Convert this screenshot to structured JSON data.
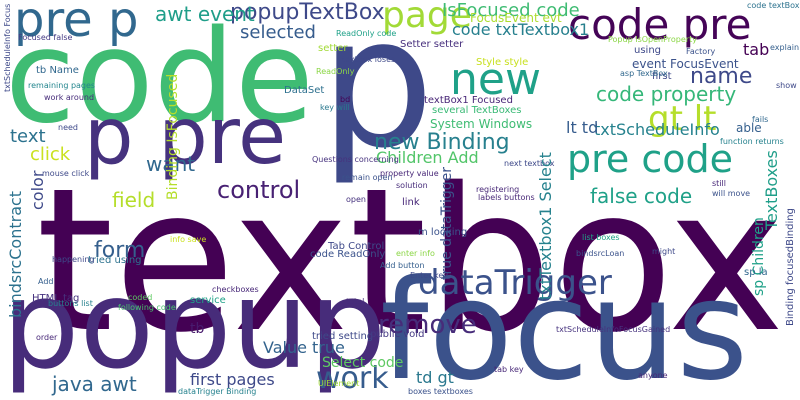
{
  "words": [
    {
      "text": "textbox",
      "color": "#440154",
      "vertical": false
    },
    {
      "text": "focus",
      "color": "#3b528b",
      "vertical": false
    },
    {
      "text": "popup",
      "color": "#472c7a",
      "vertical": false
    },
    {
      "text": "code",
      "color": "#3fbc73",
      "vertical": false
    },
    {
      "text": "p",
      "color": "#3e4989",
      "vertical": false
    },
    {
      "text": "p pre",
      "color": "#46327e",
      "vertical": false
    },
    {
      "text": "pre p",
      "color": "#31688e",
      "vertical": false
    },
    {
      "text": "code pre",
      "color": "#450457",
      "vertical": false
    },
    {
      "text": "page",
      "color": "#a2da37",
      "vertical": false
    },
    {
      "text": "new",
      "color": "#1fa188",
      "vertical": false
    },
    {
      "text": "pre code",
      "color": "#1fa188",
      "vertical": false
    },
    {
      "text": "gt lt",
      "color": "#b5de2b",
      "vertical": false
    },
    {
      "text": "dataTrigger",
      "color": "#3b528b",
      "vertical": false
    },
    {
      "text": "work",
      "color": "#365c8d",
      "vertical": false
    },
    {
      "text": "remove",
      "color": "#472c7a",
      "vertical": false
    },
    {
      "text": "control",
      "color": "#482173",
      "vertical": false
    },
    {
      "text": "name",
      "color": "#3e4989",
      "vertical": false
    },
    {
      "text": "code property",
      "color": "#35b779",
      "vertical": false
    },
    {
      "text": "new Binding",
      "color": "#27808e",
      "vertical": false
    },
    {
      "text": "false code",
      "color": "#1fa188",
      "vertical": false
    },
    {
      "text": "java awt",
      "color": "#31688e",
      "vertical": false
    },
    {
      "text": "popupTextBox",
      "color": "#3e4989",
      "vertical": false
    },
    {
      "text": "awt event",
      "color": "#1f9e89",
      "vertical": false
    },
    {
      "text": "IsFocused code",
      "color": "#3fbc73",
      "vertical": false
    },
    {
      "text": "code txtTextbox1",
      "color": "#27808e",
      "vertical": false
    },
    {
      "text": "selected",
      "color": "#365c8d",
      "vertical": false
    },
    {
      "text": "want",
      "color": "#31688e",
      "vertical": false
    },
    {
      "text": "form",
      "color": "#355f8d",
      "vertical": false
    },
    {
      "text": "field",
      "color": "#b5de2b",
      "vertical": false
    },
    {
      "text": "click",
      "color": "#cae11f",
      "vertical": false
    },
    {
      "text": "text",
      "color": "#2c728e",
      "vertical": false
    },
    {
      "text": "Children Add",
      "color": "#52c569",
      "vertical": false
    },
    {
      "text": "txtScheduleInfo",
      "color": "#26828e",
      "vertical": false
    },
    {
      "text": "lt td",
      "color": "#365c8d",
      "vertical": false
    },
    {
      "text": "first pages",
      "color": "#3e4989",
      "vertical": false
    },
    {
      "text": "Value true",
      "color": "#33638d",
      "vertical": false
    },
    {
      "text": "Select code",
      "color": "#5ec962",
      "vertical": false
    },
    {
      "text": "td gt",
      "color": "#2a788e",
      "vertical": false
    },
    {
      "text": "tab",
      "color": "#440154",
      "vertical": false
    },
    {
      "text": "able",
      "color": "#355f8d",
      "vertical": false
    },
    {
      "text": "FocusEvent evt",
      "color": "#addc30",
      "vertical": false
    },
    {
      "text": "event FocusEvent",
      "color": "#3b528b",
      "vertical": false
    },
    {
      "text": "System Windows",
      "color": "#3fbc73",
      "vertical": false
    },
    {
      "text": "Style style",
      "color": "#c8e020",
      "vertical": false
    },
    {
      "text": "textBox1 Focused",
      "color": "#482677",
      "vertical": false
    },
    {
      "text": "several TextBoxes",
      "color": "#3aba76",
      "vertical": false
    },
    {
      "text": "DataSet",
      "color": "#2d708e",
      "vertical": false
    },
    {
      "text": "Setter setter",
      "color": "#472f7d",
      "vertical": false
    },
    {
      "text": "first",
      "color": "#3e4989",
      "vertical": false
    },
    {
      "text": "tb Name",
      "color": "#31688e",
      "vertical": false
    },
    {
      "text": "tb",
      "color": "#481b6d",
      "vertical": false
    },
    {
      "text": "HTML tag",
      "color": "#46327e",
      "vertical": false
    },
    {
      "text": "work around",
      "color": "#472c7a",
      "vertical": false
    },
    {
      "text": "remaining pages",
      "color": "#24868e",
      "vertical": false
    },
    {
      "text": "Focused false",
      "color": "#443983",
      "vertical": false
    },
    {
      "text": "need",
      "color": "#3e4989",
      "vertical": false
    },
    {
      "text": "tried using",
      "color": "#2c728e",
      "vertical": false
    },
    {
      "text": "service",
      "color": "#1fa188",
      "vertical": false
    },
    {
      "text": "checkboxes",
      "color": "#482878",
      "vertical": false
    },
    {
      "text": "coded",
      "color": "#5ec962",
      "vertical": false
    },
    {
      "text": "following code",
      "color": "#4ac16d",
      "vertical": false
    },
    {
      "text": "happening",
      "color": "#3e4989",
      "vertical": false
    },
    {
      "text": "buttons list",
      "color": "#26828e",
      "vertical": false
    },
    {
      "text": "mouse click",
      "color": "#3e4989",
      "vertical": false
    },
    {
      "text": "order",
      "color": "#482878",
      "vertical": false
    },
    {
      "text": "Add",
      "color": "#355f8d",
      "vertical": false
    },
    {
      "text": "info save",
      "color": "#cae11f",
      "vertical": false
    },
    {
      "text": "Tab Control",
      "color": "#3e4989",
      "vertical": false
    },
    {
      "text": "code ReadOnly",
      "color": "#3b528b",
      "vertical": false
    },
    {
      "text": "total",
      "color": "#472c7a",
      "vertical": false
    },
    {
      "text": "tried setting",
      "color": "#3e4989",
      "vertical": false
    },
    {
      "text": "public void",
      "color": "#443983",
      "vertical": false
    },
    {
      "text": "UIElement",
      "color": "#a2da37",
      "vertical": false
    },
    {
      "text": "enter info",
      "color": "#8bd646",
      "vertical": false
    },
    {
      "text": "Add button",
      "color": "#355f8d",
      "vertical": false
    },
    {
      "text": "Enter key",
      "color": "#3e4989",
      "vertical": false
    },
    {
      "text": "link",
      "color": "#482878",
      "vertical": false
    },
    {
      "text": "open",
      "color": "#46327e",
      "vertical": false
    },
    {
      "text": "m looking",
      "color": "#3b528b",
      "vertical": false
    },
    {
      "text": "solution",
      "color": "#472c7a",
      "vertical": false
    },
    {
      "text": "property value",
      "color": "#482878",
      "vertical": false
    },
    {
      "text": "next textbox",
      "color": "#3e4989",
      "vertical": false
    },
    {
      "text": "registering",
      "color": "#482878",
      "vertical": false
    },
    {
      "text": "list boxes",
      "color": "#20a486",
      "vertical": false
    },
    {
      "text": "bindsrcLoan",
      "color": "#3b528b",
      "vertical": false
    },
    {
      "text": "might",
      "color": "#3e4989",
      "vertical": false
    },
    {
      "text": "anyone",
      "color": "#482878",
      "vertical": false
    },
    {
      "text": "tab key",
      "color": "#482878",
      "vertical": false
    },
    {
      "text": "dataTrigger Binding",
      "color": "#26828e",
      "vertical": false
    },
    {
      "text": "boxes textboxes",
      "color": "#3b528b",
      "vertical": false
    },
    {
      "text": "using",
      "color": "#3e4989",
      "vertical": false
    },
    {
      "text": "asp TextBox",
      "color": "#31688e",
      "vertical": false
    },
    {
      "text": "Popup IsOpenProperty",
      "color": "#8bd646",
      "vertical": false
    },
    {
      "text": "function returns",
      "color": "#26828e",
      "vertical": false
    },
    {
      "text": "fails",
      "color": "#31688e",
      "vertical": false
    },
    {
      "text": "explain",
      "color": "#355f8d",
      "vertical": false
    },
    {
      "text": "still",
      "color": "#482878",
      "vertical": false
    },
    {
      "text": "will move",
      "color": "#3b528b",
      "vertical": false
    },
    {
      "text": "show",
      "color": "#3e4989",
      "vertical": false
    },
    {
      "text": "setter",
      "color": "#a2da37",
      "vertical": false
    },
    {
      "text": "bd",
      "color": "#440154",
      "vertical": false
    },
    {
      "text": "key will",
      "color": "#2a788e",
      "vertical": false
    },
    {
      "text": "code textBox1",
      "color": "#2c728e",
      "vertical": false
    },
    {
      "text": "Factory",
      "color": "#3b528b",
      "vertical": false
    },
    {
      "text": "textbox loses",
      "color": "#3e4989",
      "vertical": false
    },
    {
      "text": "ReadOnly code",
      "color": "#1fa188",
      "vertical": false
    },
    {
      "text": "ReadOnly",
      "color": "#8bd646",
      "vertical": false
    },
    {
      "text": "Questions concerning",
      "color": "#46327e",
      "vertical": false
    },
    {
      "text": "remain open",
      "color": "#3b528b",
      "vertical": false
    },
    {
      "text": "labels buttons",
      "color": "#482878",
      "vertical": false
    },
    {
      "text": "bindsrcContract",
      "color": "#2c728e",
      "vertical": true
    },
    {
      "text": "color",
      "color": "#3e4989",
      "vertical": true
    },
    {
      "text": "txtTextbox1 Select",
      "color": "#26828e",
      "vertical": true
    },
    {
      "text": "true dataTrigger",
      "color": "#3b528b",
      "vertical": true
    },
    {
      "text": "sp Children",
      "color": "#1fa188",
      "vertical": true
    },
    {
      "text": "TextBoxes",
      "color": "#1f9e89",
      "vertical": true
    },
    {
      "text": "Binding IsFocused",
      "color": "#b5de2b",
      "vertical": true
    },
    {
      "text": "txtScheduleInfo Focus",
      "color": "#3e4989",
      "vertical": true
    },
    {
      "text": "Binding focusedBinding",
      "color": "#3e4989",
      "vertical": true
    },
    {
      "text": "txtScheduleInfoFocusGained",
      "color": "#46327e",
      "vertical": false
    },
    {
      "text": "sp la",
      "color": "#31688e",
      "vertical": false
    }
  ]
}
